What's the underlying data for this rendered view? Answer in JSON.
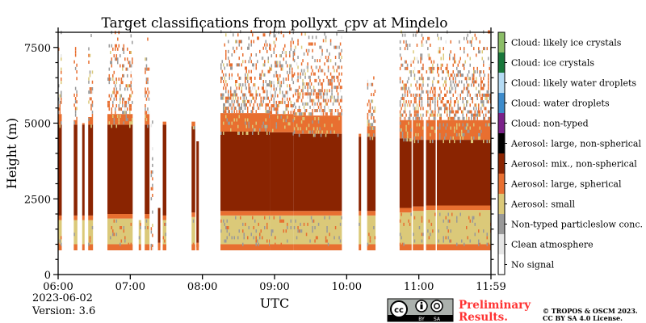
{
  "chart_data": {
    "type": "heatmap",
    "title": "Target classifications from pollyxt_cpv at Mindelo",
    "xlabel": "UTC",
    "ylabel": "Height (m)",
    "xlim": [
      "06:00",
      "11:59"
    ],
    "ylim": [
      0,
      8000
    ],
    "x_ticks": [
      "06:00",
      "07:00",
      "08:00",
      "09:00",
      "10:00",
      "11:00",
      "11:59"
    ],
    "y_ticks": [
      0,
      2500,
      5000,
      7500
    ],
    "y_tick_labels": [
      "0",
      "2500",
      "5000",
      "7500"
    ],
    "date": "2023-06-02",
    "version": "Version: 3.6",
    "classes": [
      {
        "label": "Cloud: likely ice crystals",
        "color": "#8bbd67"
      },
      {
        "label": "Cloud: ice crystals",
        "color": "#18773a"
      },
      {
        "label": "Cloud: likely water droplets",
        "color": "#b5dbf4"
      },
      {
        "label": "Cloud: water droplets",
        "color": "#3d8bcb"
      },
      {
        "label": "Cloud: non-typed",
        "color": "#7a2189"
      },
      {
        "label": "Aerosol: large, non-spherical",
        "color": "#000000"
      },
      {
        "label": "Aerosol: mix., non-spherical",
        "color": "#8a2401"
      },
      {
        "label": "Aerosol: large, spherical",
        "color": "#e86f30"
      },
      {
        "label": "Aerosol: small",
        "color": "#dbc979"
      },
      {
        "label": "Non-typed particleslow conc.",
        "color": "#999999"
      },
      {
        "label": "Clean atmosphere",
        "color": "#e6e6e6"
      },
      {
        "label": "No signal",
        "color": "#ffffff"
      }
    ],
    "profiles": [
      {
        "start": "06:00",
        "end": "06:02",
        "base": 800,
        "small_top": 1800,
        "mix_top": 4950,
        "large_sph_top": 5300,
        "speckle_top": 8000
      },
      {
        "start": "06:13",
        "end": "06:15",
        "base": 800,
        "small_top": 1800,
        "mix_top": 4950,
        "large_sph_top": 5100,
        "speckle_top": 8000
      },
      {
        "start": "06:20",
        "end": "06:21",
        "base": 800,
        "small_top": 1800,
        "mix_top": 4950,
        "large_sph_top": 5000,
        "speckle_top": 5000
      },
      {
        "start": "06:25",
        "end": "06:28",
        "base": 800,
        "small_top": 1800,
        "mix_top": 4950,
        "large_sph_top": 5200,
        "speckle_top": 8000
      },
      {
        "start": "06:41",
        "end": "07:01",
        "base": 800,
        "small_top": 1850,
        "mix_top": 4950,
        "large_sph_top": 5300,
        "speckle_top": 8000
      },
      {
        "start": "07:07",
        "end": "07:08",
        "base": 800,
        "small_top": 1800,
        "mix_top": 1800,
        "large_sph_top": 1800,
        "speckle_top": 1800
      },
      {
        "start": "07:12",
        "end": "07:15",
        "base": 800,
        "small_top": 1850,
        "mix_top": 4950,
        "large_sph_top": 5300,
        "speckle_top": 8000
      },
      {
        "start": "07:17",
        "end": "07:18",
        "base": 800,
        "small_top": 800,
        "mix_top": 800,
        "large_sph_top": 800,
        "speckle_top": 5000
      },
      {
        "start": "07:23",
        "end": "07:24",
        "base": 800,
        "small_top": 900,
        "mix_top": 2200,
        "large_sph_top": 2200,
        "speckle_top": 2200
      },
      {
        "start": "07:27",
        "end": "07:29",
        "base": 800,
        "small_top": 1800,
        "mix_top": 4950,
        "large_sph_top": 5050,
        "speckle_top": 5050
      },
      {
        "start": "07:51",
        "end": "07:53",
        "base": 800,
        "small_top": 1900,
        "mix_top": 4900,
        "large_sph_top": 5050,
        "speckle_top": 5050
      },
      {
        "start": "07:55",
        "end": "07:56",
        "base": 800,
        "small_top": 900,
        "mix_top": 4400,
        "large_sph_top": 4400,
        "speckle_top": 4400
      },
      {
        "start": "08:15",
        "end": "08:55",
        "base": 800,
        "small_top": 1950,
        "mix_top": 4720,
        "large_sph_top": 5330,
        "speckle_top": 8000
      },
      {
        "start": "08:56",
        "end": "09:15",
        "base": 800,
        "small_top": 1950,
        "mix_top": 4700,
        "large_sph_top": 5300,
        "speckle_top": 8000
      },
      {
        "start": "09:16",
        "end": "09:55",
        "base": 800,
        "small_top": 1950,
        "mix_top": 4650,
        "large_sph_top": 5250,
        "speckle_top": 8000
      },
      {
        "start": "10:10",
        "end": "10:11",
        "base": 800,
        "small_top": 1950,
        "mix_top": 4550,
        "large_sph_top": 4650,
        "speckle_top": 4650
      },
      {
        "start": "10:17",
        "end": "10:23",
        "base": 800,
        "small_top": 1950,
        "mix_top": 4550,
        "large_sph_top": 4900,
        "speckle_top": 6500
      },
      {
        "start": "10:44",
        "end": "10:53",
        "base": 800,
        "small_top": 2050,
        "mix_top": 4500,
        "large_sph_top": 5100,
        "speckle_top": 8000
      },
      {
        "start": "10:55",
        "end": "11:03",
        "base": 800,
        "small_top": 2100,
        "mix_top": 4450,
        "large_sph_top": 5100,
        "speckle_top": 8000
      },
      {
        "start": "11:06",
        "end": "11:13",
        "base": 800,
        "small_top": 2130,
        "mix_top": 4450,
        "large_sph_top": 5100,
        "speckle_top": 8000
      },
      {
        "start": "11:15",
        "end": "11:59",
        "base": 800,
        "small_top": 2130,
        "mix_top": 4450,
        "large_sph_top": 5100,
        "speckle_top": 8000
      }
    ]
  },
  "footer": {
    "license_badge": "cc BY SA",
    "preliminary_line1": "Preliminary",
    "preliminary_line2": "Results.",
    "copyright_line1": "© TROPOS & OSCM 2023.",
    "copyright_line2": "CC BY SA 4.0 License."
  }
}
